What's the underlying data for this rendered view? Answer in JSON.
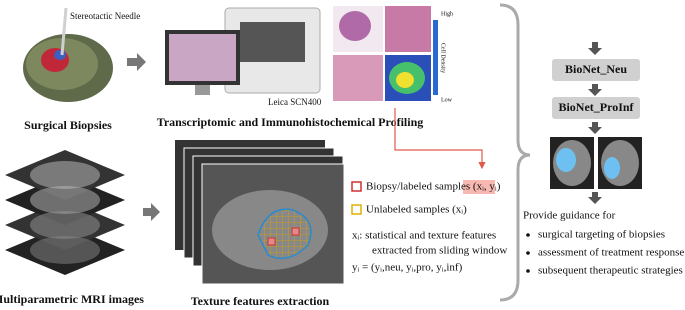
{
  "biopsy": {
    "needle_label": "Stereotactic Needle",
    "caption": "Surgical Biopsies"
  },
  "profiling": {
    "scanner_label": "Leica SCN400",
    "density_high": "High",
    "density_title": "Cell Density",
    "density_low": "Low",
    "caption": "Transcriptomic and Immunohistochemical Profiling"
  },
  "mri": {
    "caption": "Multiparametric MRI images"
  },
  "texture": {
    "caption": "Texture features extraction",
    "legend": [
      "Biopsy/labeled samples (xᵢ, yᵢ)",
      "Unlabeled samples (xᵢ)"
    ],
    "x_def": [
      "xᵢ: statistical and texture features",
      "extracted from sliding window"
    ],
    "y_def": "yᵢ = (yᵢ,neu, yᵢ,pro, yᵢ,inf)"
  },
  "models": [
    "BioNet_Neu",
    "BioNet_ProInf"
  ],
  "guidance": {
    "title": "Provide guidance for",
    "items": [
      "surgical targeting of biopsies",
      "assessment of treatment response",
      "subsequent therapeutic strategies"
    ]
  }
}
